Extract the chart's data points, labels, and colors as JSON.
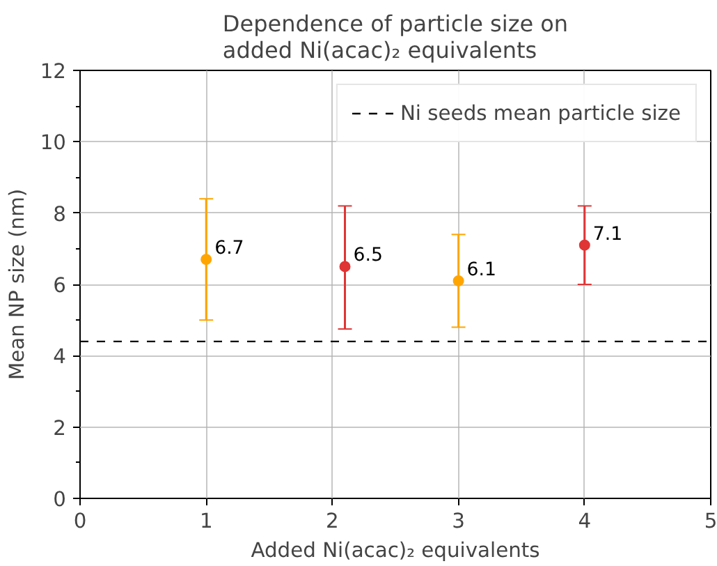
{
  "chart_data": {
    "type": "scatter",
    "title": "Dependence of particle size on\nadded Ni(acac)₂ equivalents",
    "xlabel": "Added Ni(acac)₂ equivalents",
    "ylabel": "Mean NP size (nm)",
    "series": [
      {
        "x": [
          1,
          3
        ],
        "values": [
          6.7,
          6.1
        ],
        "errors": [
          [
            5.0,
            8.4
          ],
          [
            4.8,
            7.4
          ]
        ],
        "color": "#ffa500"
      },
      {
        "x": [
          2.1,
          4
        ],
        "values": [
          6.5,
          7.1
        ],
        "errors": [
          [
            4.75,
            8.2
          ],
          [
            6.0,
            8.2
          ]
        ],
        "color": "#e03535"
      }
    ],
    "data_labels": true,
    "marker": "circle",
    "xlim": [
      0,
      5
    ],
    "xticks": [
      0,
      1,
      2,
      3,
      4,
      5
    ],
    "ylim": [
      0,
      12
    ],
    "yticks": [
      0,
      {
        "value": 1,
        "label": null
      },
      2,
      {
        "value": 3,
        "label": null
      },
      4,
      {
        "value": 5,
        "label": null
      },
      6,
      {
        "value": 7,
        "label": null
      },
      8,
      {
        "value": 9,
        "label": null
      },
      10,
      {
        "value": 11,
        "label": null
      },
      12
    ],
    "ref_lines": [
      {
        "axis": "y",
        "value": 4.4,
        "label": "Ni seeds mean particle size",
        "color": "#000000",
        "line_style": "dashed"
      }
    ],
    "grid": true,
    "legend": "top right"
  }
}
